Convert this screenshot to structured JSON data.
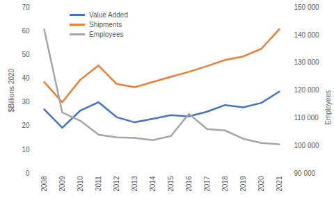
{
  "chart_data": {
    "type": "line",
    "categories": [
      "2008",
      "2009",
      "2010",
      "2011",
      "2012",
      "2013",
      "2014",
      "2015",
      "2016",
      "2017",
      "2018",
      "2019",
      "2020",
      "2021"
    ],
    "ylabel": "$Billions 2020",
    "y2label": "Employees",
    "ylim": [
      0,
      70
    ],
    "yticks": [
      0,
      10,
      20,
      30,
      40,
      50,
      60,
      70
    ],
    "y2lim": [
      90000,
      150000
    ],
    "y2ticks": [
      {
        "value": 90000,
        "label": "90 000"
      },
      {
        "value": 100000,
        "label": "100 000"
      },
      {
        "value": 110000,
        "label": "110 000"
      },
      {
        "value": 120000,
        "label": "120 000"
      },
      {
        "value": 130000,
        "label": "130 000"
      },
      {
        "value": 140000,
        "label": "140 000"
      },
      {
        "value": 150000,
        "label": "150 000"
      }
    ],
    "grid": false,
    "legend": "top-left",
    "series": [
      {
        "name": "Value Added",
        "color": "#4472c4",
        "values": [
          27,
          19.2,
          26.5,
          30,
          23.7,
          21.5,
          23,
          24.5,
          24,
          26,
          28.8,
          27.8,
          29.7,
          34.5
        ]
      },
      {
        "name": "Shipments",
        "color": "#ed7d31",
        "values": [
          38.5,
          30,
          39.5,
          45.5,
          37.7,
          36.3,
          38.5,
          40.7,
          42.8,
          45.2,
          47.8,
          49.3,
          52.5,
          60.8
        ]
      },
      {
        "name": "Employees",
        "color": "#a5a5a5",
        "axis": "y2",
        "values": [
          142000,
          112000,
          109000,
          104000,
          103000,
          102800,
          102000,
          103500,
          111500,
          106000,
          105500,
          102500,
          101000,
          100500
        ]
      }
    ]
  }
}
